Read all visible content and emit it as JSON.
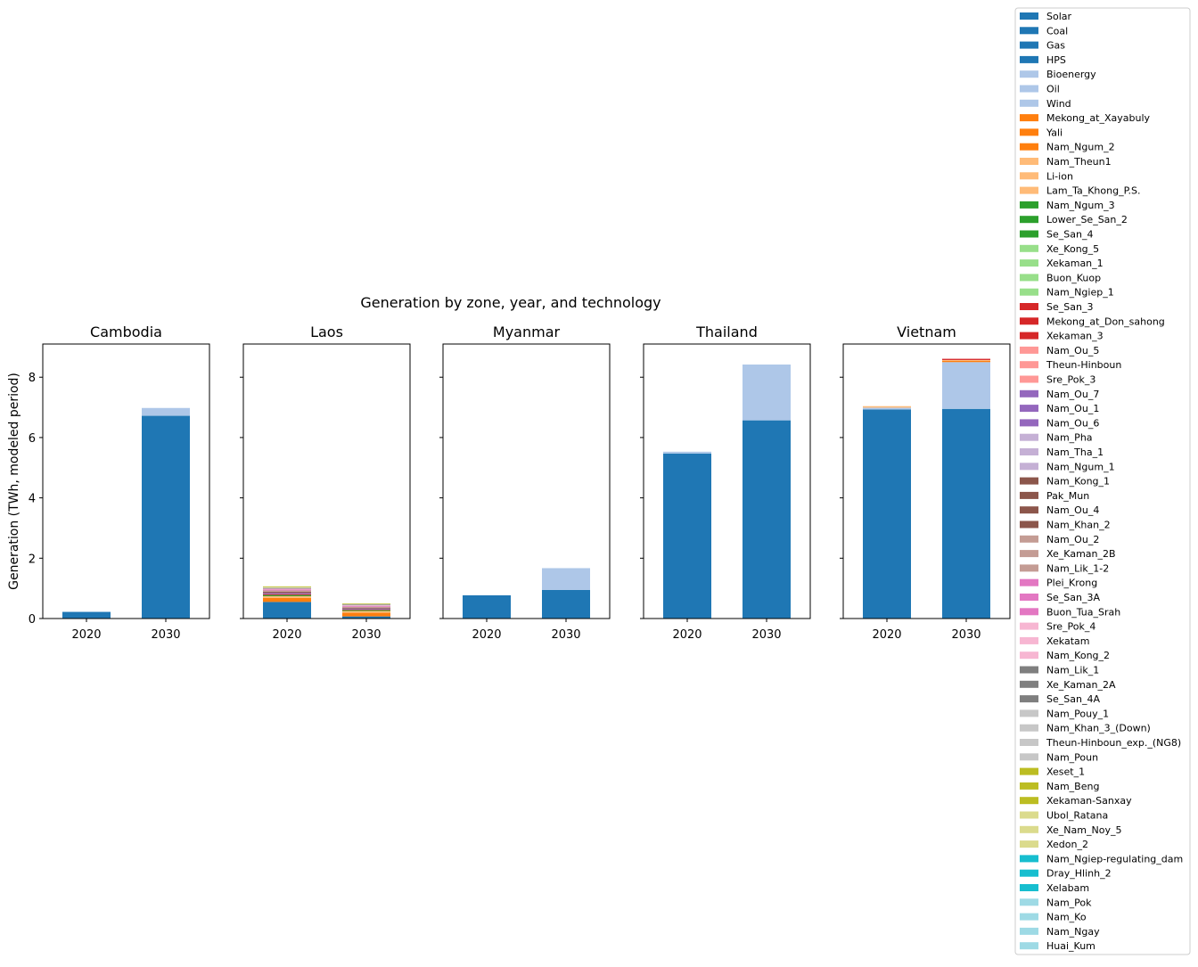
{
  "chart_data": {
    "type": "bar",
    "stacked": true,
    "title": "Generation by zone, year, and technology",
    "ylabel": "Generation (TWh, modeled period)",
    "ylim": [
      0,
      9.1
    ],
    "yticks": [
      0,
      2,
      4,
      6,
      8
    ],
    "categories": [
      "2020",
      "2030"
    ],
    "legend_placement": "right",
    "panels": [
      {
        "title": "Cambodia",
        "stacks": [
          [
            {
              "tech": "Solar",
              "value": 0.22
            }
          ],
          [
            {
              "tech": "Solar",
              "value": 6.72
            },
            {
              "tech": "Bioenergy",
              "value": 0.26
            }
          ]
        ]
      },
      {
        "title": "Laos",
        "stacks": [
          [
            {
              "tech": "Solar",
              "value": 0.55
            },
            {
              "tech": "Mekong_at_Xayabuly",
              "value": 0.13
            },
            {
              "tech": "Nam_Theun1",
              "value": 0.06
            },
            {
              "tech": "Nam_Ngum_3",
              "value": 0.04
            },
            {
              "tech": "Se_San_3",
              "value": 0.03
            },
            {
              "tech": "Nam_Ou_7",
              "value": 0.04
            },
            {
              "tech": "Nam_Kong_1",
              "value": 0.04
            },
            {
              "tech": "Nam_Ou_2",
              "value": 0.04
            },
            {
              "tech": "Plei_Krong",
              "value": 0.03
            },
            {
              "tech": "Sre_Pok_4",
              "value": 0.03
            },
            {
              "tech": "Nam_Lik_1",
              "value": 0.02
            },
            {
              "tech": "Nam_Pouy_1",
              "value": 0.02
            },
            {
              "tech": "Xeset_1",
              "value": 0.02
            },
            {
              "tech": "Ubol_Ratana",
              "value": 0.02
            }
          ]
        ],
        "stacks_2030": [
          [
            {
              "tech": "Solar",
              "value": 0.07
            },
            {
              "tech": "Mekong_at_Xayabuly",
              "value": 0.12
            },
            {
              "tech": "Nam_Theun1",
              "value": 0.06
            },
            {
              "tech": "Nam_Ngum_3",
              "value": 0.03
            },
            {
              "tech": "Se_San_3",
              "value": 0.02
            },
            {
              "tech": "Nam_Ou_7",
              "value": 0.03
            },
            {
              "tech": "Nam_Kong_1",
              "value": 0.03
            },
            {
              "tech": "Nam_Ou_2",
              "value": 0.03
            },
            {
              "tech": "Plei_Krong",
              "value": 0.03
            },
            {
              "tech": "Sre_Pok_4",
              "value": 0.02
            },
            {
              "tech": "Nam_Lik_1",
              "value": 0.02
            },
            {
              "tech": "Nam_Pouy_1",
              "value": 0.02
            },
            {
              "tech": "Xeset_1",
              "value": 0.02
            }
          ]
        ]
      },
      {
        "title": "Myanmar",
        "stacks": [
          [
            {
              "tech": "Solar",
              "value": 0.77
            }
          ],
          [
            {
              "tech": "Solar",
              "value": 0.95
            },
            {
              "tech": "Bioenergy",
              "value": 0.72
            }
          ]
        ]
      },
      {
        "title": "Thailand",
        "stacks": [
          [
            {
              "tech": "Solar",
              "value": 5.47
            },
            {
              "tech": "Bioenergy",
              "value": 0.06
            }
          ],
          [
            {
              "tech": "Solar",
              "value": 6.57
            },
            {
              "tech": "Bioenergy",
              "value": 1.85
            }
          ]
        ]
      },
      {
        "title": "Vietnam",
        "stacks": [
          [
            {
              "tech": "Solar",
              "value": 6.93
            },
            {
              "tech": "Bioenergy",
              "value": 0.06
            },
            {
              "tech": "Li-ion",
              "value": 0.05
            }
          ],
          [
            {
              "tech": "Solar",
              "value": 6.95
            },
            {
              "tech": "Bioenergy",
              "value": 1.55
            },
            {
              "tech": "Mekong_at_Xayabuly",
              "value": 0.04
            },
            {
              "tech": "Li-ion",
              "value": 0.03
            },
            {
              "tech": "Se_San_3",
              "value": 0.04
            }
          ]
        ]
      }
    ],
    "legend": [
      {
        "label": "Solar",
        "color": "#1f77b4"
      },
      {
        "label": "Coal",
        "color": "#1f77b4"
      },
      {
        "label": "Gas",
        "color": "#1f77b4"
      },
      {
        "label": "HPS",
        "color": "#1f77b4"
      },
      {
        "label": "Bioenergy",
        "color": "#aec7e8"
      },
      {
        "label": "Oil",
        "color": "#aec7e8"
      },
      {
        "label": "Wind",
        "color": "#aec7e8"
      },
      {
        "label": "Mekong_at_Xayabuly",
        "color": "#ff7f0e"
      },
      {
        "label": "Yali",
        "color": "#ff7f0e"
      },
      {
        "label": "Nam_Ngum_2",
        "color": "#ff7f0e"
      },
      {
        "label": "Nam_Theun1",
        "color": "#ffbb78"
      },
      {
        "label": "Li-ion",
        "color": "#ffbb78"
      },
      {
        "label": "Lam_Ta_Khong_P.S.",
        "color": "#ffbb78"
      },
      {
        "label": "Nam_Ngum_3",
        "color": "#2ca02c"
      },
      {
        "label": "Lower_Se_San_2",
        "color": "#2ca02c"
      },
      {
        "label": "Se_San_4",
        "color": "#2ca02c"
      },
      {
        "label": "Xe_Kong_5",
        "color": "#98df8a"
      },
      {
        "label": "Xekaman_1",
        "color": "#98df8a"
      },
      {
        "label": "Buon_Kuop",
        "color": "#98df8a"
      },
      {
        "label": "Nam_Ngiep_1",
        "color": "#98df8a"
      },
      {
        "label": "Se_San_3",
        "color": "#d62728"
      },
      {
        "label": "Mekong_at_Don_sahong",
        "color": "#d62728"
      },
      {
        "label": "Xekaman_3",
        "color": "#d62728"
      },
      {
        "label": "Nam_Ou_5",
        "color": "#ff9896"
      },
      {
        "label": "Theun-Hinboun",
        "color": "#ff9896"
      },
      {
        "label": "Sre_Pok_3",
        "color": "#ff9896"
      },
      {
        "label": "Nam_Ou_7",
        "color": "#9467bd"
      },
      {
        "label": "Nam_Ou_1",
        "color": "#9467bd"
      },
      {
        "label": "Nam_Ou_6",
        "color": "#9467bd"
      },
      {
        "label": "Nam_Pha",
        "color": "#c5b0d5"
      },
      {
        "label": "Nam_Tha_1",
        "color": "#c5b0d5"
      },
      {
        "label": "Nam_Ngum_1",
        "color": "#c5b0d5"
      },
      {
        "label": "Nam_Kong_1",
        "color": "#8c564b"
      },
      {
        "label": "Pak_Mun",
        "color": "#8c564b"
      },
      {
        "label": "Nam_Ou_4",
        "color": "#8c564b"
      },
      {
        "label": "Nam_Khan_2",
        "color": "#8c564b"
      },
      {
        "label": "Nam_Ou_2",
        "color": "#c49c94"
      },
      {
        "label": "Xe_Kaman_2B",
        "color": "#c49c94"
      },
      {
        "label": "Nam_Lik_1-2",
        "color": "#c49c94"
      },
      {
        "label": "Plei_Krong",
        "color": "#e377c2"
      },
      {
        "label": "Se_San_3A",
        "color": "#e377c2"
      },
      {
        "label": "Buon_Tua_Srah",
        "color": "#e377c2"
      },
      {
        "label": "Sre_Pok_4",
        "color": "#f7b6d2"
      },
      {
        "label": "Xekatam",
        "color": "#f7b6d2"
      },
      {
        "label": "Nam_Kong_2",
        "color": "#f7b6d2"
      },
      {
        "label": "Nam_Lik_1",
        "color": "#7f7f7f"
      },
      {
        "label": "Xe_Kaman_2A",
        "color": "#7f7f7f"
      },
      {
        "label": "Se_San_4A",
        "color": "#7f7f7f"
      },
      {
        "label": "Nam_Pouy_1",
        "color": "#c7c7c7"
      },
      {
        "label": "Nam_Khan_3_(Down)",
        "color": "#c7c7c7"
      },
      {
        "label": "Theun-Hinboun_exp._(NG8)",
        "color": "#c7c7c7"
      },
      {
        "label": "Nam_Poun",
        "color": "#c7c7c7"
      },
      {
        "label": "Xeset_1",
        "color": "#bcbd22"
      },
      {
        "label": "Nam_Beng",
        "color": "#bcbd22"
      },
      {
        "label": "Xekaman-Sanxay",
        "color": "#bcbd22"
      },
      {
        "label": "Ubol_Ratana",
        "color": "#dbdb8d"
      },
      {
        "label": "Xe_Nam_Noy_5",
        "color": "#dbdb8d"
      },
      {
        "label": "Xedon_2",
        "color": "#dbdb8d"
      },
      {
        "label": "Nam_Ngiep-regulating_dam",
        "color": "#17becf"
      },
      {
        "label": "Dray_Hlinh_2",
        "color": "#17becf"
      },
      {
        "label": "Xelabam",
        "color": "#17becf"
      },
      {
        "label": "Nam_Pok",
        "color": "#9edae5"
      },
      {
        "label": "Nam_Ko",
        "color": "#9edae5"
      },
      {
        "label": "Nam_Ngay",
        "color": "#9edae5"
      },
      {
        "label": "Huai_Kum",
        "color": "#9edae5"
      }
    ]
  }
}
